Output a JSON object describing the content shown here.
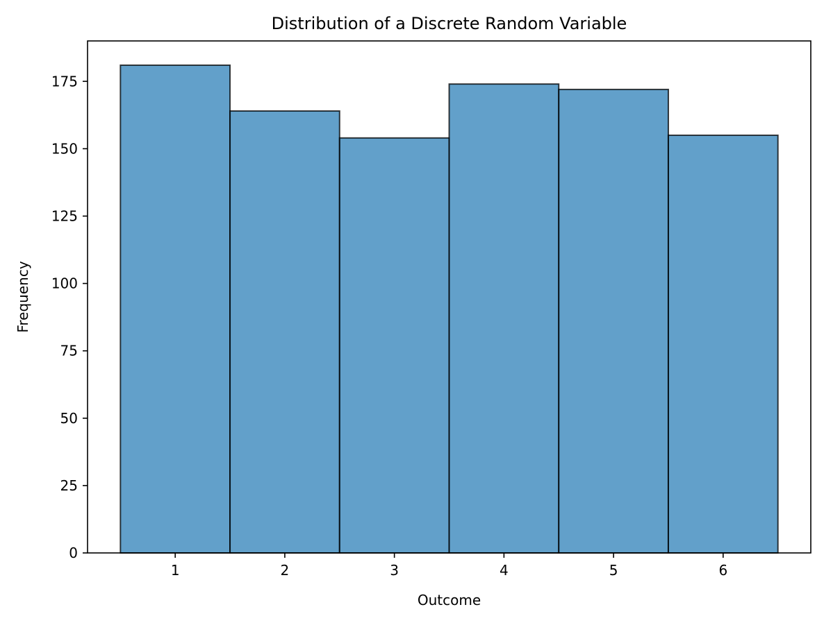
{
  "chart_data": {
    "type": "bar",
    "title": "Distribution of a Discrete Random Variable",
    "xlabel": "Outcome",
    "ylabel": "Frequency",
    "categories": [
      "1",
      "2",
      "3",
      "4",
      "5",
      "6"
    ],
    "x": [
      1,
      2,
      3,
      4,
      5,
      6
    ],
    "values": [
      181,
      164,
      154,
      174,
      172,
      155
    ],
    "xlim": [
      0.2,
      6.8
    ],
    "ylim": [
      0,
      190
    ],
    "xticks": [
      1,
      2,
      3,
      4,
      5,
      6
    ],
    "yticks": [
      0,
      25,
      50,
      75,
      100,
      125,
      150,
      175
    ],
    "bar_color": "#1f77b4",
    "edge_color": "#000000",
    "grid": false,
    "legend": false
  }
}
